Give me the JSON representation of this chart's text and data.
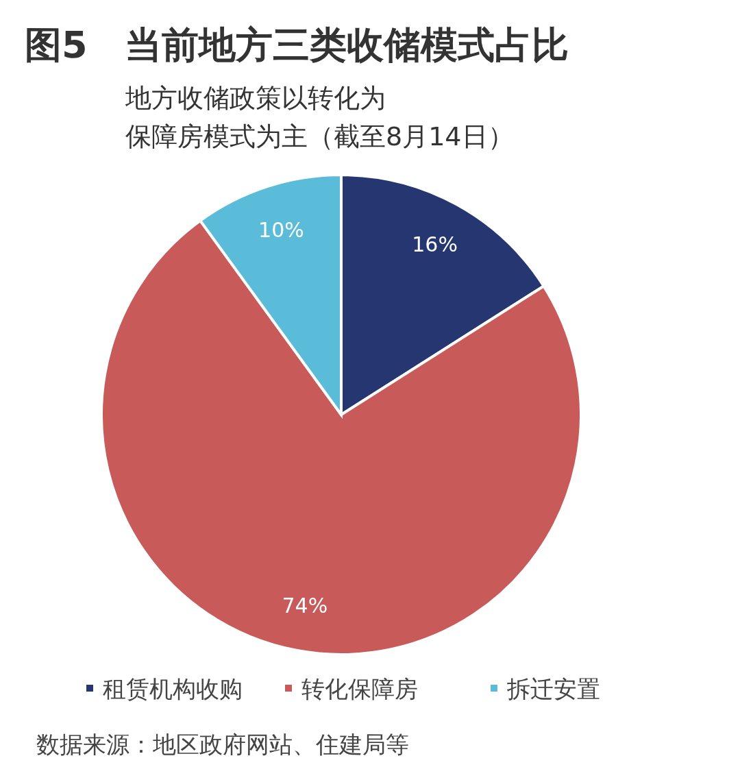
{
  "chart_data": {
    "type": "pie",
    "title": "图5　当前地方三类收储模式占比",
    "subtitle": "地方收储政策以转化为保障房模式为主（截至8月14日）",
    "categories": [
      "租赁机构收购",
      "转化保障房",
      "拆迁安置"
    ],
    "values": [
      16,
      74,
      10
    ],
    "colors": [
      "#253670",
      "#c85a5a",
      "#5bbcd9"
    ],
    "value_labels": [
      "16%",
      "74%",
      "10%"
    ],
    "legend": "bottom",
    "annotations": [
      "数据来源：地区政府网站、住建局等"
    ]
  }
}
